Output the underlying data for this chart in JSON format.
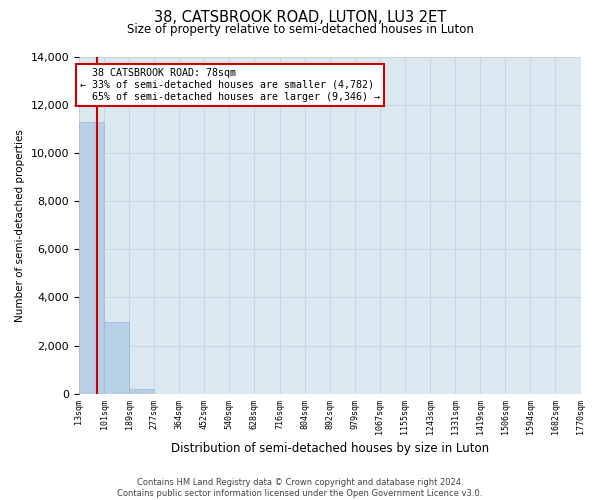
{
  "title": "38, CATSBROOK ROAD, LUTON, LU3 2ET",
  "subtitle": "Size of property relative to semi-detached houses in Luton",
  "xlabel": "Distribution of semi-detached houses by size in Luton",
  "ylabel": "Number of semi-detached properties",
  "property_size": 78,
  "property_label": "38 CATSBROOK ROAD: 78sqm",
  "pct_smaller": 33,
  "pct_larger": 65,
  "count_smaller": 4782,
  "count_larger": 9346,
  "bin_edges": [
    13,
    101,
    189,
    277,
    364,
    452,
    540,
    628,
    716,
    804,
    892,
    979,
    1067,
    1155,
    1243,
    1331,
    1419,
    1506,
    1594,
    1682,
    1770
  ],
  "bar_heights": [
    11300,
    3000,
    200,
    0,
    0,
    0,
    0,
    0,
    0,
    0,
    0,
    0,
    0,
    0,
    0,
    0,
    0,
    0,
    0,
    0
  ],
  "bar_color": "#b8cfe8",
  "bar_edgecolor": "#9ab8d8",
  "grid_color": "#c8d4e4",
  "background_color": "#dce8f0",
  "annotation_box_edgecolor": "#cc0000",
  "vline_color": "#cc0000",
  "ylim": [
    0,
    14000
  ],
  "yticks": [
    0,
    2000,
    4000,
    6000,
    8000,
    10000,
    12000,
    14000
  ],
  "footer_line1": "Contains HM Land Registry data © Crown copyright and database right 2024.",
  "footer_line2": "Contains public sector information licensed under the Open Government Licence v3.0."
}
